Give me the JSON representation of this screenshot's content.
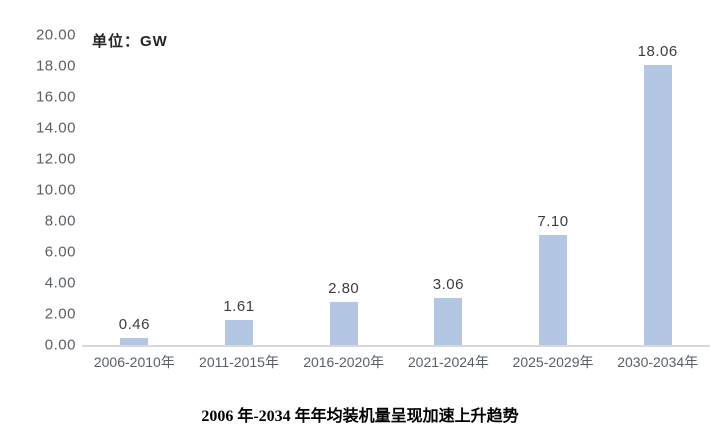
{
  "unit": {
    "label": "单位：GW"
  },
  "caption": "2006 年-2034 年年均装机量呈现加速上升趋势",
  "colors": {
    "bar": "#b3c6e4",
    "axis_line": "#d8d8d8",
    "tick_text": "#595f66",
    "value_text": "#3d3d3d",
    "title_text": "#000000"
  },
  "chart_data": {
    "type": "bar",
    "title": "2006 年-2034 年年均装机量呈现加速上升趋势",
    "unit": "单位：GW",
    "categories": [
      "2006-2010年",
      "2011-2015年",
      "2016-2020年",
      "2021-2024年",
      "2025-2029年",
      "2030-2034年"
    ],
    "values": [
      0.46,
      1.61,
      2.8,
      3.06,
      7.1,
      18.06
    ],
    "value_labels": [
      "0.46",
      "1.61",
      "2.80",
      "3.06",
      "7.10",
      "18.06"
    ],
    "xlabel": "",
    "ylabel": "",
    "ylim": [
      0,
      20
    ],
    "ytick_step": 2,
    "ytick_labels": [
      "0.00",
      "2.00",
      "4.00",
      "6.00",
      "8.00",
      "10.00",
      "12.00",
      "14.00",
      "16.00",
      "18.00",
      "20.00"
    ],
    "grid": false,
    "legend": false,
    "legend_position": "none",
    "bar_color": "#b3c6e4"
  }
}
